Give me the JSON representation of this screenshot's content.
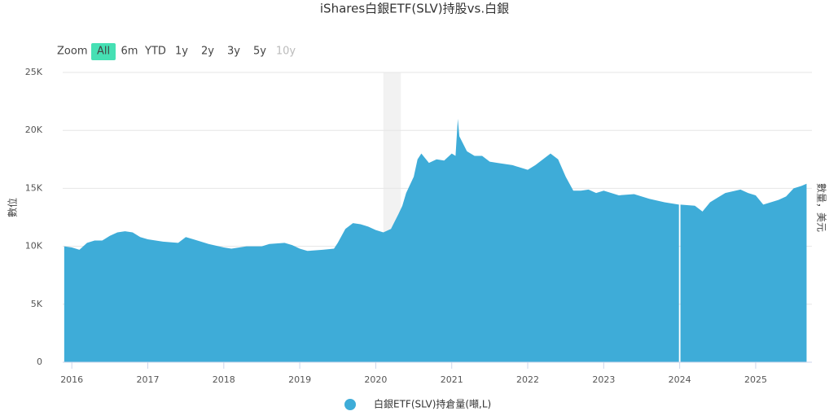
{
  "chart_data": {
    "type": "area",
    "title": "iShares白銀ETF(SLV)持股vs.白銀",
    "y_axis_title": "數位",
    "y2_axis_title": "數量，美元",
    "range_selector": {
      "label": "Zoom",
      "buttons": [
        "All",
        "6m",
        "YTD",
        "1y",
        "2y",
        "3y",
        "5y",
        "10y"
      ],
      "active": 0,
      "disabled": [
        7
      ],
      "active_color": "#46e0b4"
    },
    "xlim": [
      2015.88,
      2025.74
    ],
    "xticks": [
      2016,
      2017,
      2018,
      2019,
      2020,
      2021,
      2022,
      2023,
      2024,
      2025
    ],
    "ylim": [
      0,
      25000
    ],
    "yticks": [
      0,
      {
        "value": 5000,
        "label": "5K"
      },
      {
        "value": 10000,
        "label": "10K"
      },
      {
        "value": 15000,
        "label": "15K"
      },
      {
        "value": 20000,
        "label": "20K"
      },
      {
        "value": 25000,
        "label": "25K"
      }
    ],
    "grid": true,
    "plot_bands": [
      {
        "from": 2020.1,
        "to": 2020.33,
        "color": "#f2f2f2"
      }
    ],
    "x": [
      2015.9,
      2016.0,
      2016.1,
      2016.2,
      2016.3,
      2016.4,
      2016.5,
      2016.6,
      2016.7,
      2016.8,
      2016.9,
      2017.0,
      2017.2,
      2017.4,
      2017.5,
      2017.6,
      2017.8,
      2018.0,
      2018.1,
      2018.3,
      2018.5,
      2018.6,
      2018.8,
      2018.9,
      2019.0,
      2019.1,
      2019.3,
      2019.45,
      2019.5,
      2019.6,
      2019.7,
      2019.8,
      2019.9,
      2020.0,
      2020.1,
      2020.2,
      2020.3,
      2020.35,
      2020.4,
      2020.5,
      2020.55,
      2020.6,
      2020.7,
      2020.8,
      2020.9,
      2021.0,
      2021.05,
      2021.08,
      2021.1,
      2021.2,
      2021.3,
      2021.4,
      2021.5,
      2021.6,
      2021.8,
      2022.0,
      2022.1,
      2022.2,
      2022.3,
      2022.4,
      2022.5,
      2022.6,
      2022.7,
      2022.8,
      2022.9,
      2023.0,
      2023.2,
      2023.4,
      2023.6,
      2023.8,
      2023.99,
      2024.0,
      2024.01,
      2024.2,
      2024.3,
      2024.4,
      2024.5,
      2024.6,
      2024.8,
      2024.9,
      2025.0,
      2025.1,
      2025.2,
      2025.3,
      2025.4,
      2025.5,
      2025.6,
      2025.67
    ],
    "series": [
      {
        "name": "白銀ETF(SLV)持倉量(噸,L)",
        "color": "#3eacd8",
        "values": [
          10000,
          9900,
          9700,
          10300,
          10500,
          10500,
          10900,
          11200,
          11300,
          11200,
          10800,
          10600,
          10400,
          10300,
          10800,
          10600,
          10200,
          9900,
          9800,
          10000,
          10000,
          10200,
          10300,
          10100,
          9800,
          9600,
          9700,
          9800,
          10300,
          11500,
          12000,
          11900,
          11700,
          11400,
          11200,
          11500,
          12800,
          13500,
          14600,
          16000,
          17500,
          18000,
          17200,
          17500,
          17400,
          18000,
          17800,
          21000,
          19500,
          18200,
          17800,
          17800,
          17300,
          17200,
          17000,
          16600,
          17000,
          17500,
          18000,
          17500,
          16000,
          14800,
          14800,
          14900,
          14600,
          14800,
          14400,
          14500,
          14100,
          13800,
          13600,
          null,
          13600,
          13500,
          13000,
          13800,
          14200,
          14600,
          14900,
          14600,
          14400,
          13600,
          13800,
          14000,
          14300,
          15000,
          15200,
          15400
        ]
      }
    ]
  }
}
